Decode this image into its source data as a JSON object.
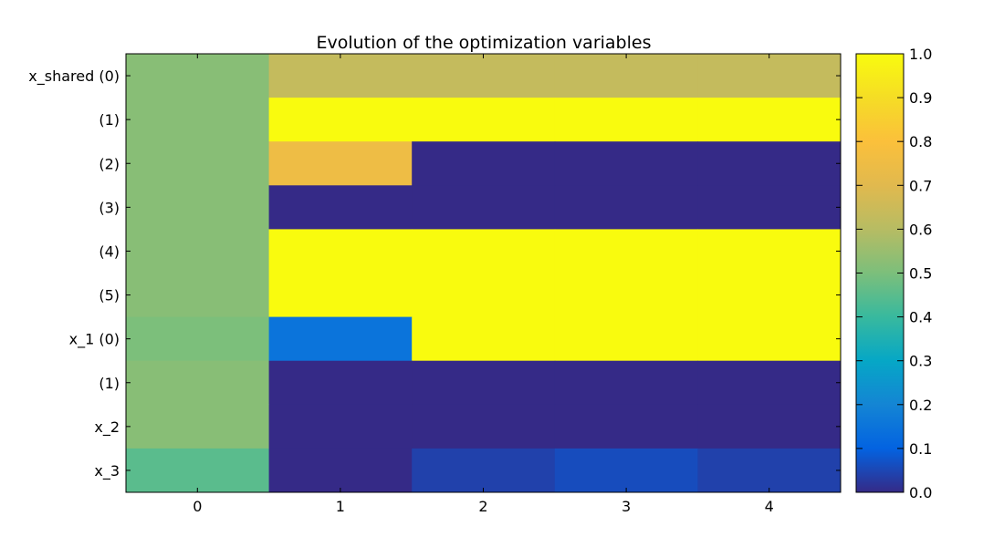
{
  "chart_data": {
    "type": "heatmap",
    "title": "Evolution of the optimization variables",
    "x": [
      0,
      1,
      2,
      3,
      4
    ],
    "y_labels": [
      "x_shared (0)",
      "(1)",
      "(2)",
      "(3)",
      "(4)",
      "(5)",
      "x_1 (0)",
      "(1)",
      "x_2",
      "x_3"
    ],
    "values": [
      [
        0.52,
        0.63,
        0.63,
        0.63,
        0.63
      ],
      [
        0.52,
        1.0,
        1.0,
        1.0,
        1.0
      ],
      [
        0.52,
        0.75,
        0.0,
        0.0,
        0.0
      ],
      [
        0.52,
        0.0,
        0.0,
        0.0,
        0.0
      ],
      [
        0.52,
        1.0,
        1.0,
        1.0,
        1.0
      ],
      [
        0.52,
        1.0,
        1.0,
        1.0,
        1.0
      ],
      [
        0.5,
        0.15,
        1.0,
        1.0,
        1.0
      ],
      [
        0.52,
        0.0,
        0.0,
        0.0,
        0.0
      ],
      [
        0.52,
        0.0,
        0.0,
        0.0,
        0.0
      ],
      [
        0.45,
        0.0,
        0.04,
        0.06,
        0.04
      ]
    ],
    "colorbar": {
      "vmin": 0.0,
      "vmax": 1.0,
      "ticks": [
        "0.0",
        "0.1",
        "0.2",
        "0.3",
        "0.4",
        "0.5",
        "0.6",
        "0.7",
        "0.8",
        "0.9",
        "1.0"
      ]
    },
    "colormap_stops": [
      {
        "v": 0.0,
        "color": "#352a87"
      },
      {
        "v": 0.1,
        "color": "#0363e1"
      },
      {
        "v": 0.2,
        "color": "#1485d4"
      },
      {
        "v": 0.3,
        "color": "#06a7c6"
      },
      {
        "v": 0.4,
        "color": "#38b99e"
      },
      {
        "v": 0.5,
        "color": "#7cbf7b"
      },
      {
        "v": 0.6,
        "color": "#b7bc63"
      },
      {
        "v": 0.7,
        "color": "#e1b94e"
      },
      {
        "v": 0.8,
        "color": "#fbc03b"
      },
      {
        "v": 0.9,
        "color": "#f5dd25"
      },
      {
        "v": 1.0,
        "color": "#f9fb0e"
      }
    ]
  }
}
